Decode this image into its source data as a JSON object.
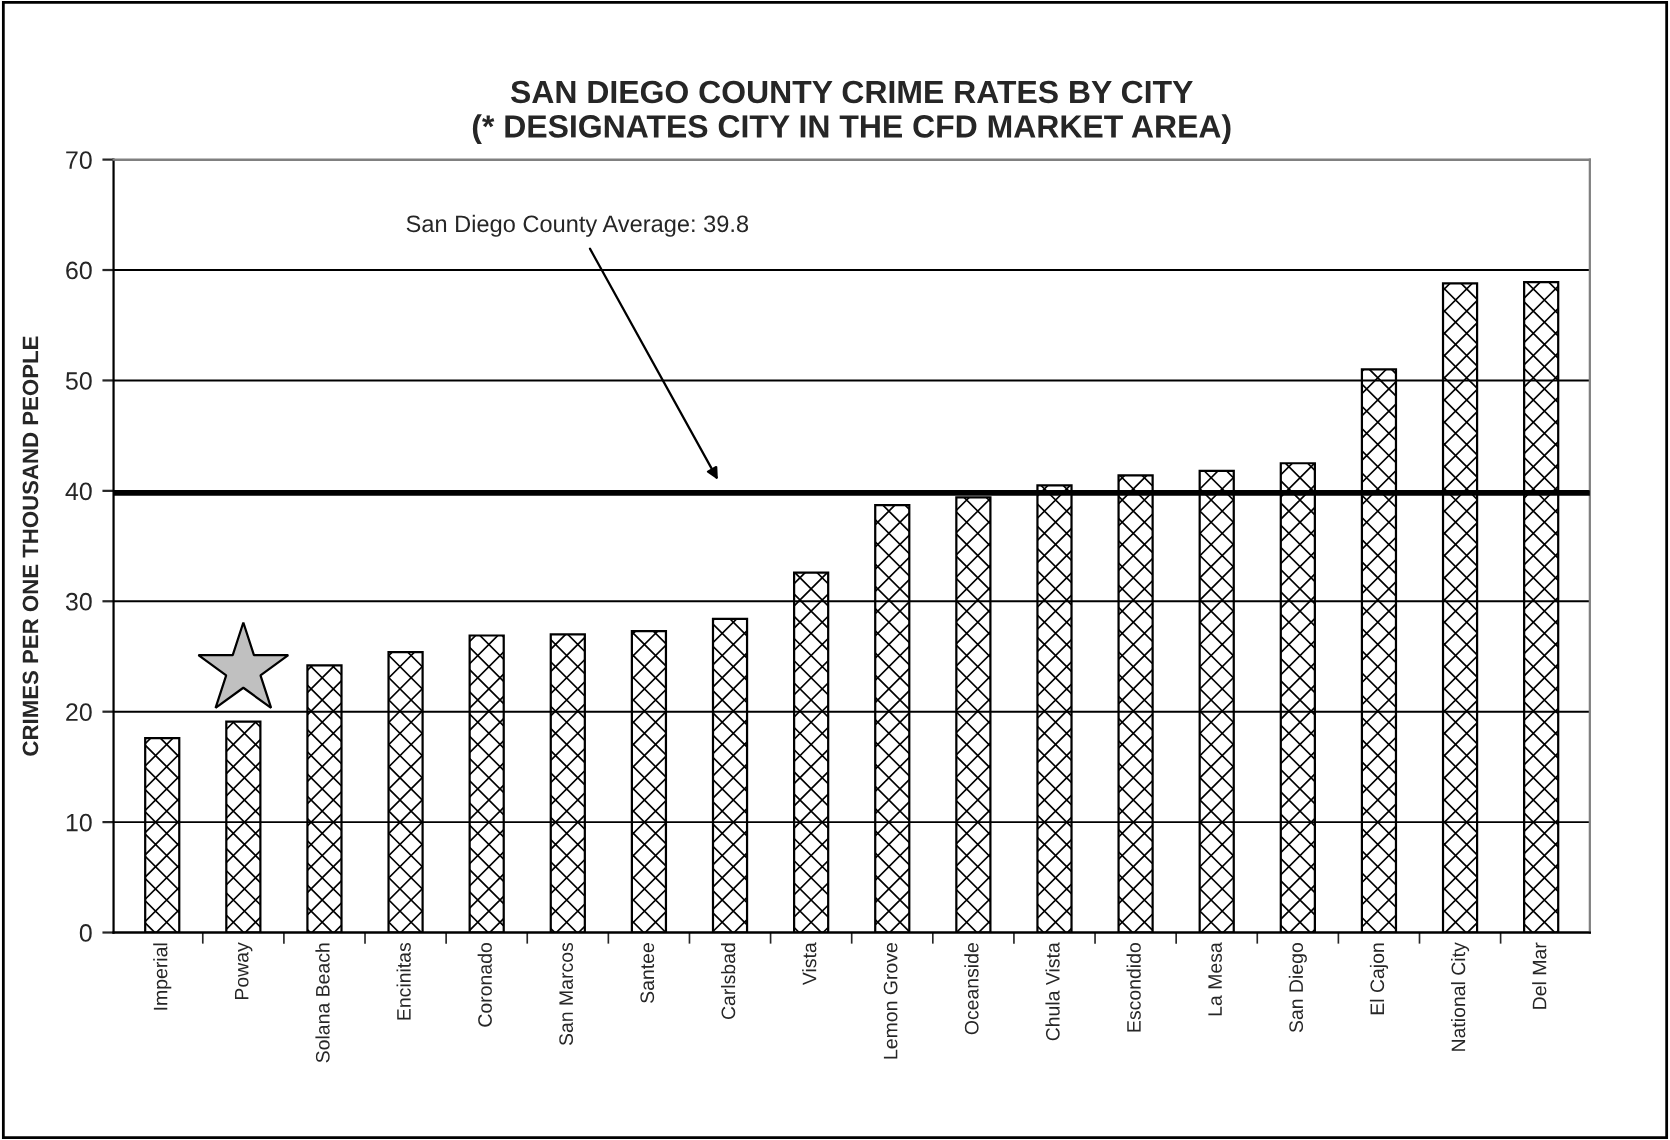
{
  "chart_data": {
    "type": "bar",
    "title": "SAN DIEGO COUNTY CRIME RATES BY CITY\n(* DESIGNATES CITY IN THE CFD MARKET AREA)",
    "ylabel": "CRIMES PER ONE THOUSAND PEOPLE",
    "categories": [
      "Imperial",
      "Poway",
      "Solana Beach",
      "Encinitas",
      "Coronado",
      "San Marcos",
      "Santee",
      "Carlsbad",
      "Vista",
      "Lemon Grove",
      "Oceanside",
      "Chula Vista",
      "Escondido",
      "La Mesa",
      "San Diego",
      "El Cajon",
      "National City",
      "Del Mar"
    ],
    "values": [
      17.6,
      19.1,
      24.2,
      25.4,
      26.9,
      27.0,
      27.3,
      28.4,
      32.6,
      38.7,
      39.4,
      40.5,
      41.4,
      41.8,
      42.5,
      51.0,
      58.8,
      58.9
    ],
    "color": "#000000",
    "ylim": [
      0,
      70
    ],
    "yticks": [
      0,
      10,
      20,
      30,
      40,
      50,
      60,
      70
    ],
    "grid": "y",
    "ref_lines": [
      {
        "axis": "y",
        "value": 39.8,
        "label": "San Diego County Average: 39.8",
        "color": "#000000"
      }
    ]
  }
}
